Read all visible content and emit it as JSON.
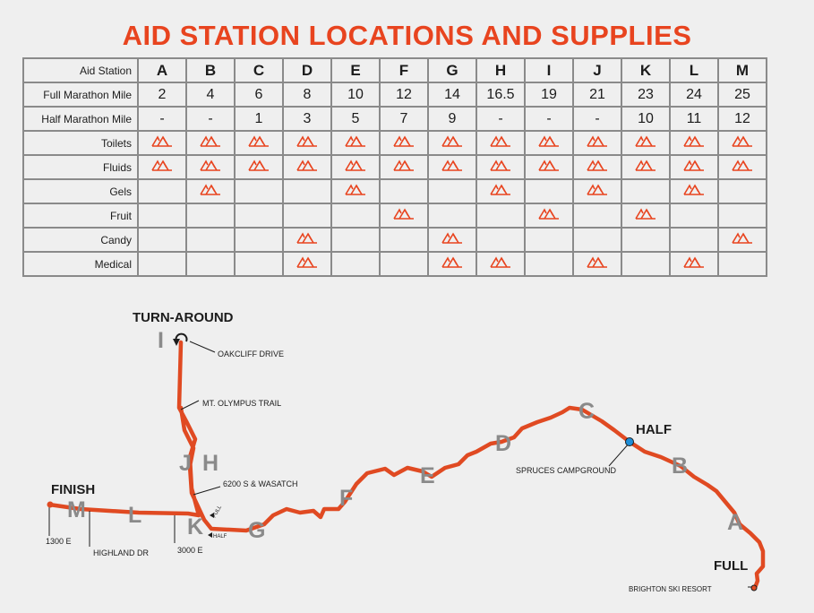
{
  "title": "AID STATION LOCATIONS AND SUPPLIES",
  "table": {
    "rows": [
      {
        "label": "Aid Station",
        "type": "text",
        "cells": [
          "A",
          "B",
          "C",
          "D",
          "E",
          "F",
          "G",
          "H",
          "I",
          "J",
          "K",
          "L",
          "M"
        ]
      },
      {
        "label": "Full Marathon Mile",
        "type": "text",
        "cells": [
          "2",
          "4",
          "6",
          "8",
          "10",
          "12",
          "14",
          "16.5",
          "19",
          "21",
          "23",
          "24",
          "25"
        ]
      },
      {
        "label": "Half Marathon Mile",
        "type": "text",
        "cells": [
          "-",
          "-",
          "1",
          "3",
          "5",
          "7",
          "9",
          "-",
          "-",
          "-",
          "10",
          "11",
          "12"
        ]
      },
      {
        "label": "Toilets",
        "type": "marks",
        "cells": [
          true,
          true,
          true,
          true,
          true,
          true,
          true,
          true,
          true,
          true,
          true,
          true,
          true
        ]
      },
      {
        "label": "Fluids",
        "type": "marks",
        "cells": [
          true,
          true,
          true,
          true,
          true,
          true,
          true,
          true,
          true,
          true,
          true,
          true,
          true
        ]
      },
      {
        "label": "Gels",
        "type": "marks",
        "cells": [
          false,
          true,
          false,
          false,
          true,
          false,
          false,
          true,
          false,
          true,
          false,
          true,
          false
        ]
      },
      {
        "label": "Fruit",
        "type": "marks",
        "cells": [
          false,
          false,
          false,
          false,
          false,
          true,
          false,
          false,
          true,
          false,
          true,
          false,
          false
        ]
      },
      {
        "label": "Candy",
        "type": "marks",
        "cells": [
          false,
          false,
          false,
          true,
          false,
          false,
          true,
          false,
          false,
          false,
          false,
          false,
          true
        ]
      },
      {
        "label": "Medical",
        "type": "marks",
        "cells": [
          false,
          false,
          false,
          true,
          false,
          false,
          true,
          true,
          false,
          true,
          false,
          true,
          false
        ]
      }
    ]
  },
  "map": {
    "labels": {
      "turnaround": "TURN-AROUND",
      "finish": "FINISH",
      "half": "HALF",
      "full": "FULL",
      "oakcliff": "OAKCLIFF DRIVE",
      "olympus": "MT. OLYMPUS TRAIL",
      "wasatch": "6200 S & WASATCH",
      "spruces": "SPRUCES CAMPGROUND",
      "brighton": "BRIGHTON SKI RESORT",
      "e1300": "1300 E",
      "highland": "HIGHLAND DR",
      "e3000": "3000 E",
      "fullArrow": "FULL",
      "halfArrow": "HALF"
    },
    "stations": [
      "A",
      "B",
      "C",
      "D",
      "E",
      "F",
      "G",
      "H",
      "I",
      "J",
      "K",
      "L",
      "M"
    ]
  },
  "colors": {
    "accent": "#e8441f",
    "route": "#e04a22",
    "station": "#8a8a8a",
    "halfDot": "#1e8ed8",
    "grid": "#8a8a8a"
  }
}
